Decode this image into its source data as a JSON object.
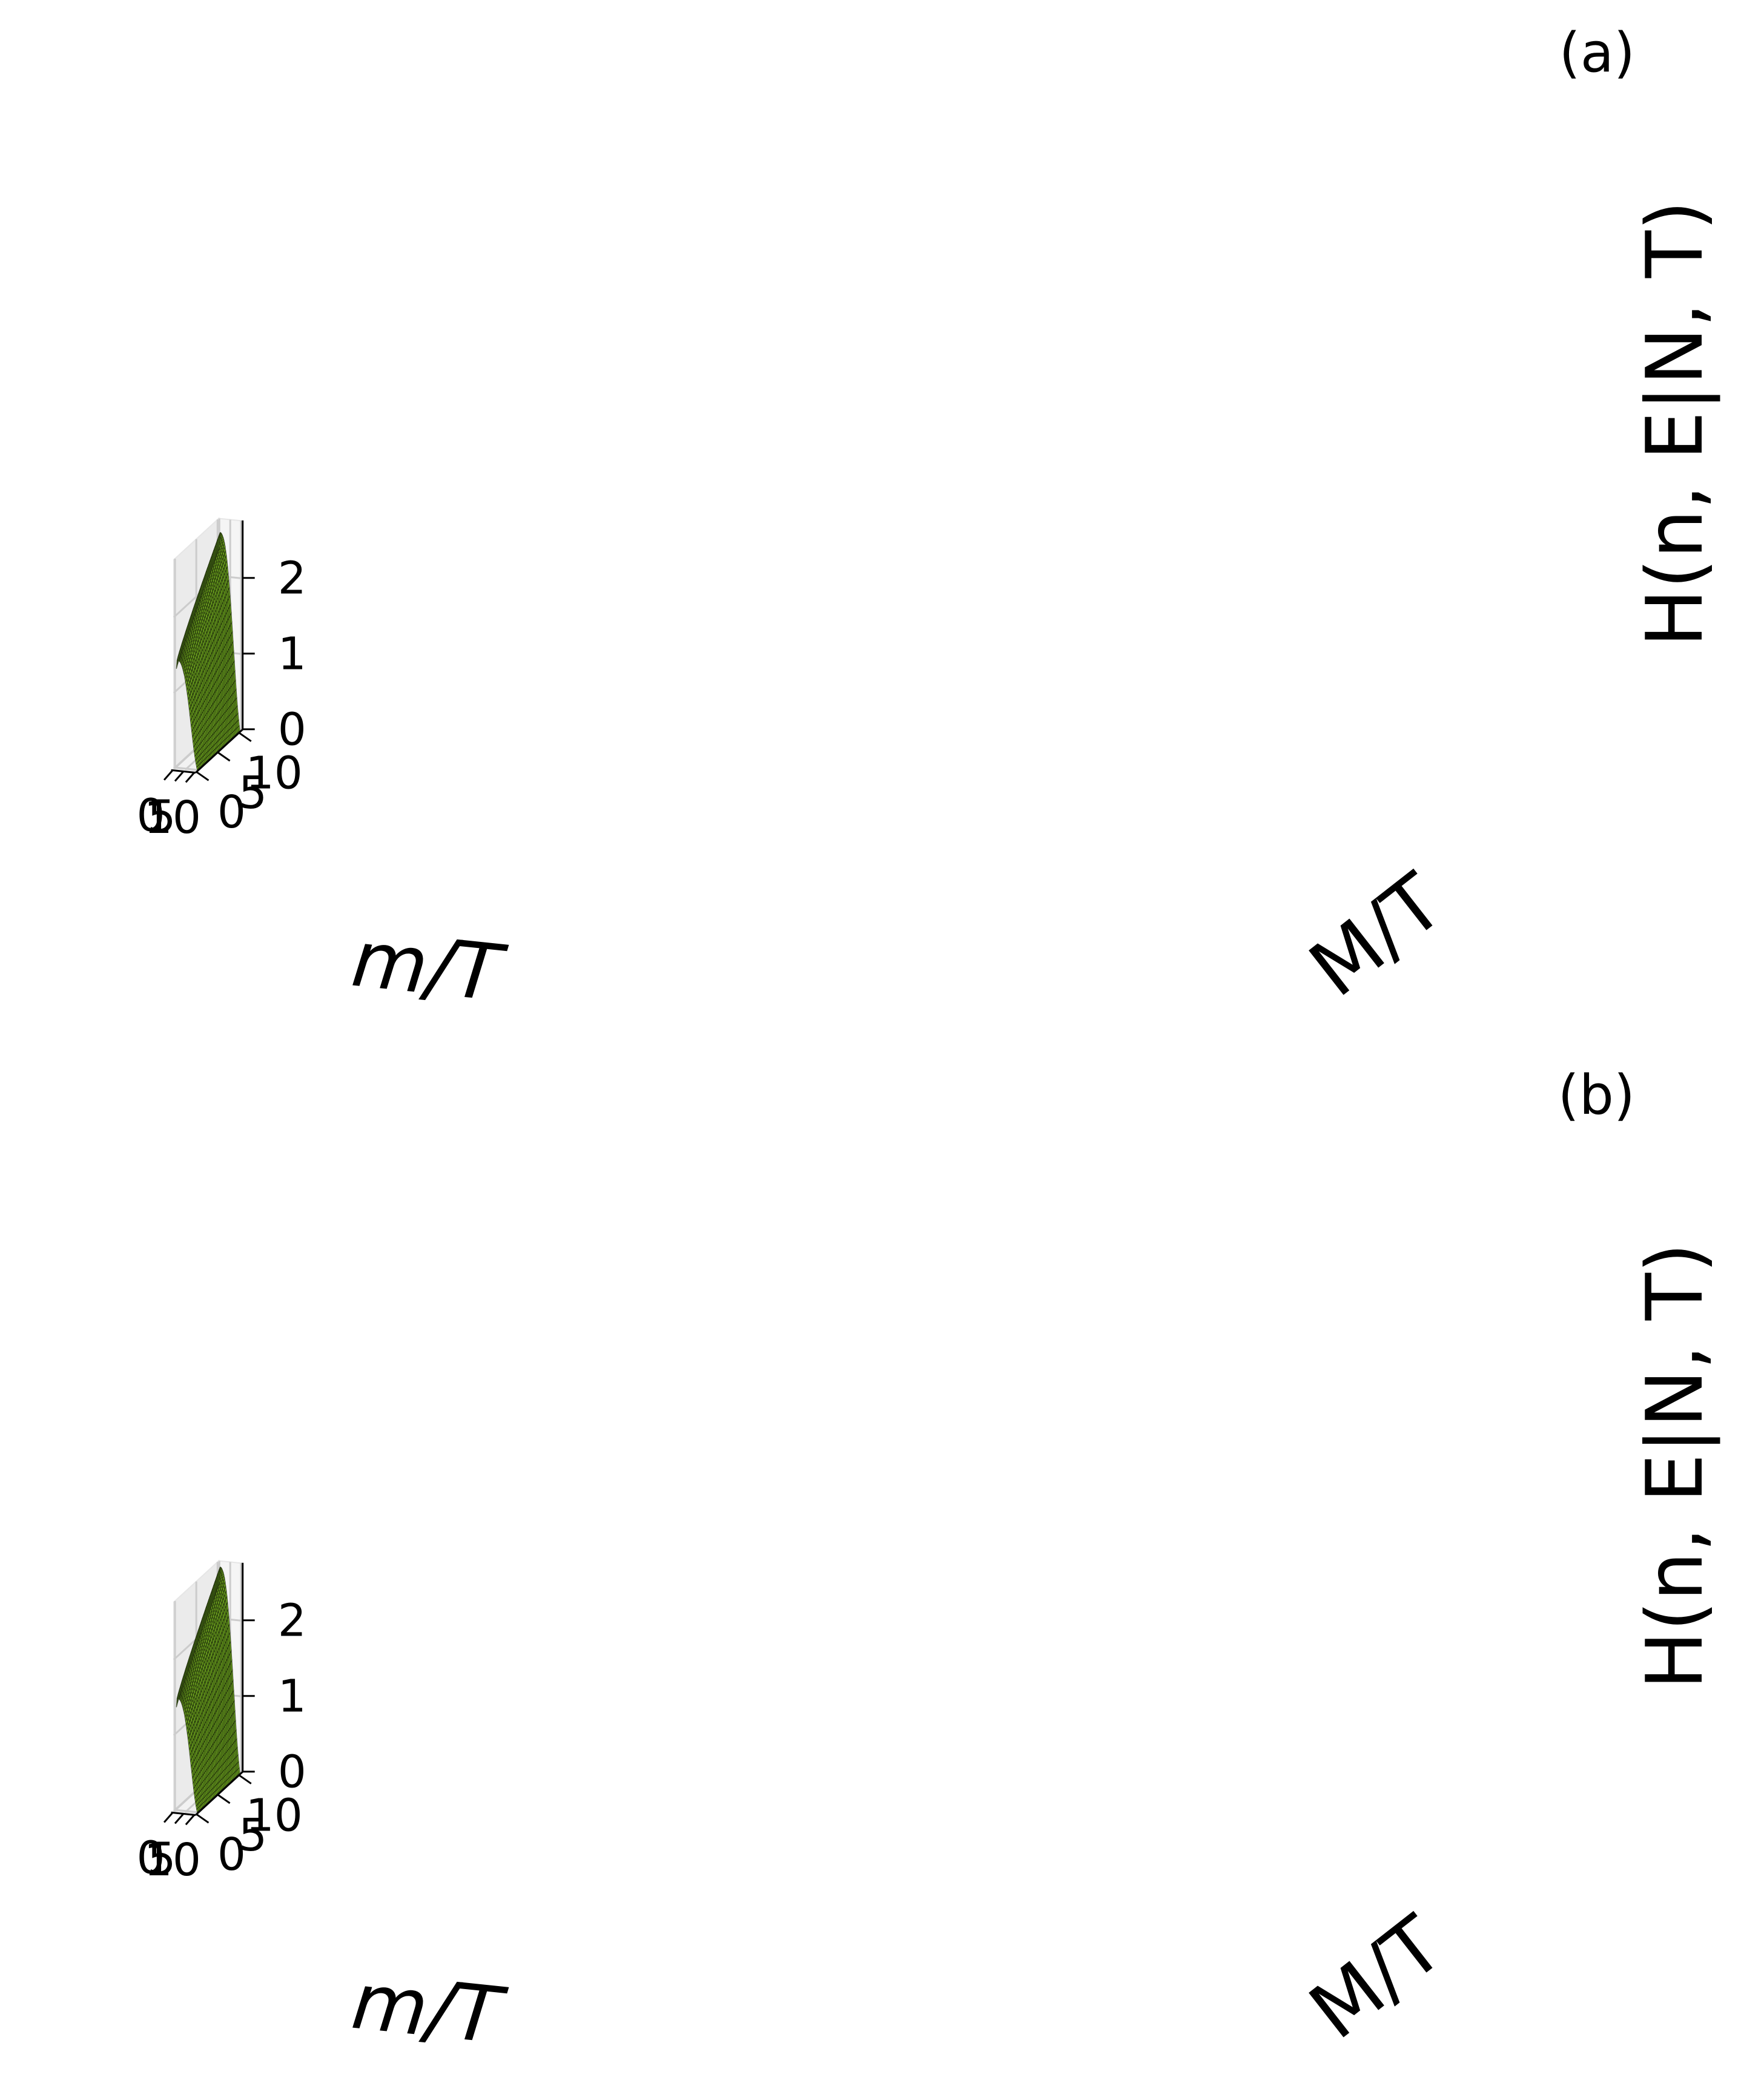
{
  "panels": [
    {
      "label": "(a)",
      "xlabel": "m/T",
      "ylabel": "M/T",
      "zlabel": "H(n, E|N, T)",
      "x_ticks": [
        "0",
        "5",
        "10"
      ],
      "y_ticks": [
        "0",
        "5",
        "10"
      ],
      "z_ticks": [
        "0",
        "1",
        "2"
      ]
    },
    {
      "label": "(b)",
      "xlabel": "m/T",
      "ylabel": "M/T",
      "zlabel": "H(n, E|N, T)",
      "x_ticks": [
        "0",
        "5",
        "10"
      ],
      "y_ticks": [
        "0",
        "5",
        "10"
      ],
      "z_ticks": [
        "0",
        "1",
        "2"
      ]
    }
  ],
  "chart_data": [
    {
      "type": "surface",
      "panel": "(a)",
      "xlabel": "m/T",
      "ylabel": "M/T",
      "zlabel": "H(n, E|N, T)",
      "xlim": [
        0,
        10
      ],
      "ylim": [
        0,
        10
      ],
      "zlim": [
        0,
        2.7
      ],
      "grid": true,
      "surface_color": "#7fbf22",
      "z_max": 2.6,
      "description_points": [
        {
          "m": 0.5,
          "M": 10,
          "H": 2.6
        },
        {
          "m": 0.5,
          "M": 0.5,
          "H": 1.35
        },
        {
          "m": 5,
          "M": 10,
          "H": 0.9
        },
        {
          "m": 10,
          "M": 10,
          "H": 0.0
        },
        {
          "m": 10,
          "M": 0,
          "H": 0.0
        }
      ]
    },
    {
      "type": "surface",
      "panel": "(b)",
      "xlabel": "m/T",
      "ylabel": "M/T",
      "zlabel": "H(n, E|N, T)",
      "xlim": [
        0,
        10
      ],
      "ylim": [
        0,
        10
      ],
      "zlim": [
        0,
        2.7
      ],
      "grid": true,
      "surface_color": "#7fbf22",
      "z_max": 2.6,
      "description_points": [
        {
          "m": 0.5,
          "M": 10,
          "H": 2.6
        },
        {
          "m": 0.5,
          "M": 0.5,
          "H": 1.45
        },
        {
          "m": 5,
          "M": 10,
          "H": 0.9
        },
        {
          "m": 10,
          "M": 10,
          "H": 0.0
        },
        {
          "m": 10,
          "M": 0,
          "H": 0.0
        }
      ]
    }
  ]
}
